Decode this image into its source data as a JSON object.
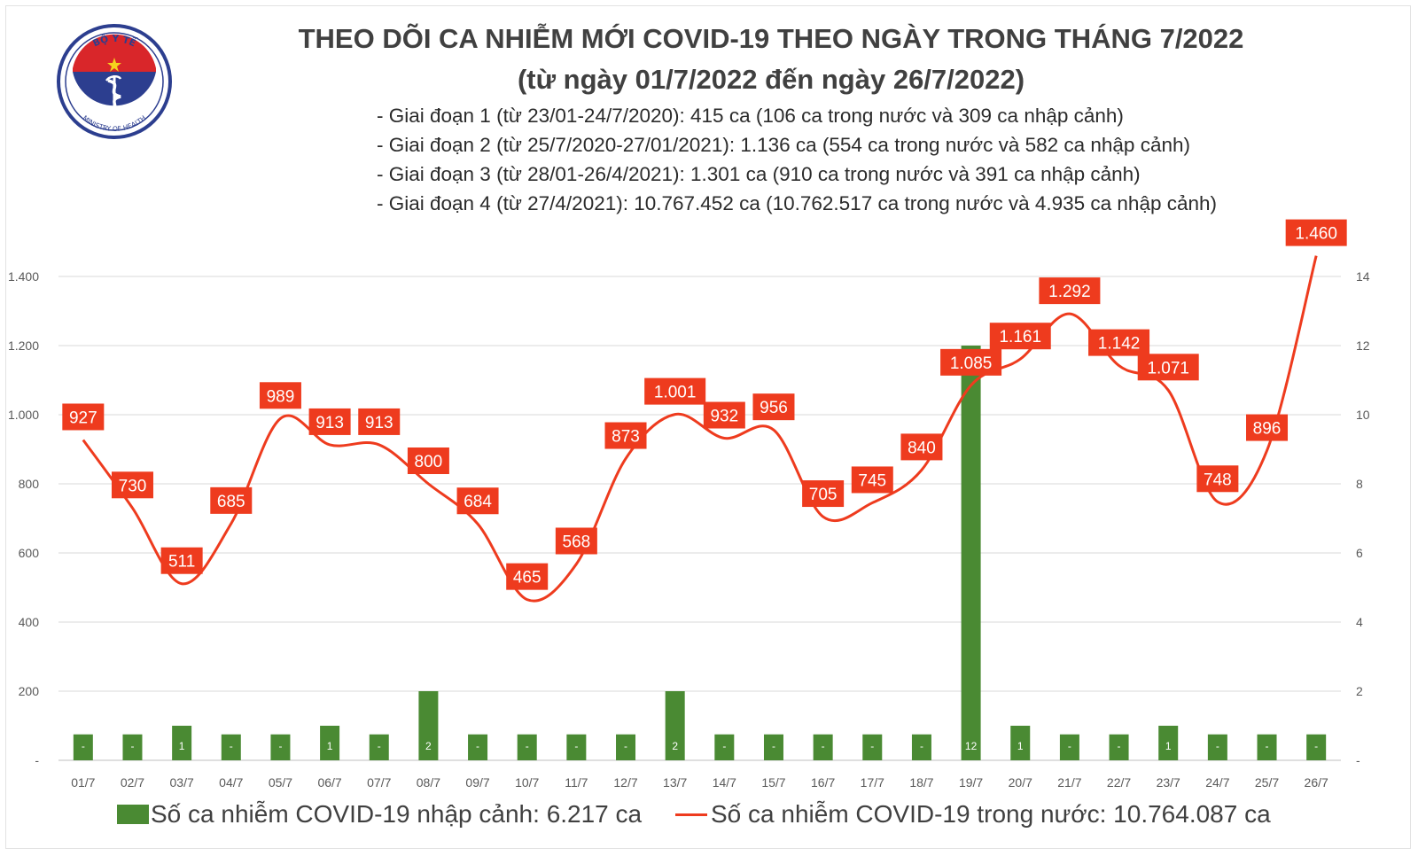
{
  "logo": {
    "top_text": "BỘ Y TẾ",
    "bottom_text": "MINISTRY OF HEALTH"
  },
  "title": "THEO DÕI CA NHIỄM MỚI COVID-19 THEO NGÀY TRONG THÁNG 7/2022",
  "subtitle": "(từ ngày 01/7/2022 đến ngày 26/7/2022)",
  "periods": [
    "- Giai đoạn 1 (từ 23/01-24/7/2020): 415 ca (106 ca trong nước và 309 ca nhập cảnh)",
    "- Giai đoạn 2 (từ 25/7/2020-27/01/2021): 1.136 ca (554 ca trong nước và 582 ca nhập cảnh)",
    "- Giai đoạn 3 (từ 28/01-26/4/2021): 1.301 ca (910 ca trong nước và 391 ca nhập cảnh)",
    "- Giai đoạn 4 (từ 27/4/2021): 10.767.452 ca (10.762.517 ca trong nước và 4.935 ca nhập cảnh)"
  ],
  "colors": {
    "line": "#ee3b1e",
    "label_bg": "#ee3b1e",
    "bar": "#4a8a33",
    "title": "#404040",
    "grid": "#d9d9d9"
  },
  "chart_data": {
    "type": "bar+line",
    "categories": [
      "01/7",
      "02/7",
      "03/7",
      "04/7",
      "05/7",
      "06/7",
      "07/7",
      "08/7",
      "09/7",
      "10/7",
      "11/7",
      "12/7",
      "13/7",
      "14/7",
      "15/7",
      "16/7",
      "17/7",
      "18/7",
      "19/7",
      "20/7",
      "21/7",
      "22/7",
      "23/7",
      "24/7",
      "25/7",
      "26/7"
    ],
    "series": [
      {
        "name": "Số ca nhiễm COVID-19 nhập cảnh: 6.217 ca",
        "type": "bar",
        "axis": "right",
        "values": [
          0,
          0,
          1,
          0,
          0,
          1,
          0,
          2,
          0,
          0,
          0,
          0,
          2,
          0,
          0,
          0,
          0,
          0,
          12,
          1,
          0,
          0,
          1,
          0,
          0,
          0
        ],
        "labels": [
          "-",
          "-",
          "1",
          "-",
          "-",
          "1",
          "-",
          "2",
          "-",
          "-",
          "-",
          "-",
          "2",
          "-",
          "-",
          "-",
          "-",
          "-",
          "12",
          "1",
          "-",
          "-",
          "1",
          "-",
          "-",
          "-"
        ]
      },
      {
        "name": "Số ca nhiễm COVID-19 trong nước: 10.764.087 ca",
        "type": "line",
        "axis": "left",
        "values": [
          927,
          730,
          511,
          685,
          989,
          913,
          913,
          800,
          684,
          465,
          568,
          873,
          1001,
          932,
          956,
          705,
          745,
          840,
          1085,
          1161,
          1292,
          1142,
          1071,
          748,
          896,
          1460
        ],
        "labels": [
          "927",
          "730",
          "511",
          "685",
          "989",
          "913",
          "913",
          "800",
          "684",
          "465",
          "568",
          "873",
          "1.001",
          "932",
          "956",
          "705",
          "745",
          "840",
          "1.085",
          "1.161",
          "1.292",
          "1.142",
          "1.071",
          "748",
          "896",
          "1.460"
        ]
      }
    ],
    "y_left": {
      "min": 0,
      "max": 1400,
      "ticks": [
        0,
        200,
        400,
        600,
        800,
        1000,
        1200,
        1400
      ],
      "tick_labels": [
        "-",
        "200",
        "400",
        "600",
        "800",
        "1.000",
        "1.200",
        "1.400"
      ]
    },
    "y_right": {
      "min": 0,
      "max": 14,
      "ticks": [
        0,
        2,
        4,
        6,
        8,
        10,
        12,
        14
      ],
      "tick_labels": [
        "-",
        "2",
        "4",
        "6",
        "8",
        "10",
        "12",
        "14"
      ]
    },
    "placeholder_bar_value": 0.75,
    "grid": true,
    "legend_position": "bottom"
  }
}
